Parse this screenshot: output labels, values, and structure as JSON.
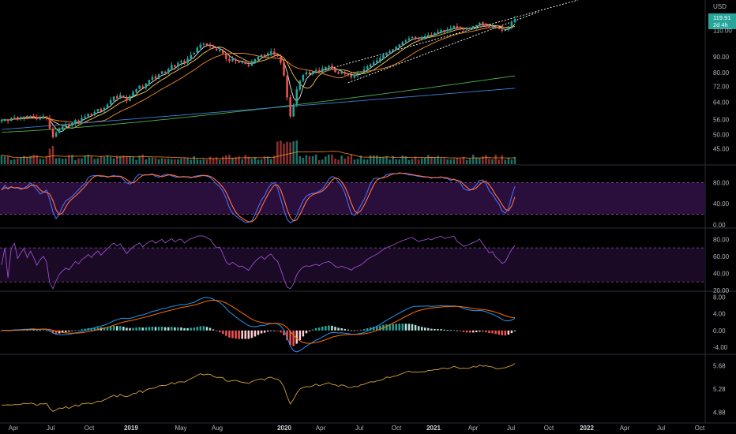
{
  "chart_data": [
    {
      "type": "candlestick",
      "pane": "price",
      "currency": "USD",
      "last_price": "119.91",
      "countdown": "2d 4h",
      "y_scale": "log",
      "y_ticks": [
        "110.00",
        "90.00",
        "80.00",
        "72.00",
        "64.00",
        "56.00",
        "50.00",
        "45.00"
      ],
      "ylim": [
        42,
        135
      ],
      "ohlc_close": [
        55.8,
        56.2,
        55.5,
        56.6,
        57.1,
        56.4,
        56.9,
        57.4,
        56.8,
        57.6,
        57.1,
        56.3,
        57.0,
        57.5,
        56.9,
        52.4,
        49.1,
        50.8,
        52.3,
        53.2,
        54.0,
        53.4,
        54.6,
        55.9,
        55.2,
        56.7,
        57.4,
        58.6,
        57.8,
        59.4,
        60.7,
        59.6,
        61.2,
        62.8,
        64.9,
        66.7,
        65.9,
        67.5,
        66.1,
        64.7,
        66.9,
        69.1,
        70.5,
        72.4,
        71.2,
        73.6,
        75.7,
        77.3,
        76.4,
        78.8,
        80.7,
        79.6,
        82.1,
        84.6,
        83.5,
        86.0,
        87.1,
        85.8,
        88.8,
        91.3,
        92.6,
        96.4,
        98.7,
        99.4,
        98.1,
        97.6,
        96.0,
        94.6,
        95.1,
        92.4,
        88.7,
        87.1,
        88.6,
        87.3,
        86.1,
        86.5,
        85.2,
        84.1,
        86.3,
        88.4,
        90.2,
        91.6,
        90.3,
        92.5,
        93.8,
        91.8,
        90.5,
        86.1,
        78.2,
        66.3,
        57.5,
        62.5,
        70.4,
        75.1,
        78.6,
        80.1,
        79.2,
        80.6,
        81.4,
        80.2,
        82.5,
        83.3,
        84.1,
        82.7,
        80.2,
        79.3,
        80.3,
        79.1,
        78.5,
        77.2,
        78.8,
        79.6,
        80.4,
        81.9,
        83.8,
        85.1,
        86.4,
        87.6,
        89.2,
        91.4,
        92.8,
        94.1,
        95.4,
        97.2,
        98.8,
        100.5,
        101.8,
        103.6,
        104.4,
        103.8,
        103.2,
        104.5,
        105.1,
        106.3,
        106.0,
        107.8,
        108.9,
        110.2,
        109.6,
        110.8,
        111.4,
        113.6,
        112.0,
        111.5,
        110.7,
        111.3,
        112.3,
        113.5,
        114.5,
        116.4,
        115.2,
        114.1,
        112.7,
        113.5,
        111.8,
        111.0,
        109.6,
        110.3,
        113.2,
        116.8,
        119.91
      ],
      "indicators": [
        "SMA 10",
        "SMA 20",
        "SMA 50",
        "SMA 100",
        "SMA 200"
      ],
      "volume_pane": true
    },
    {
      "type": "line",
      "pane": "stochastic",
      "series": [
        {
          "values": []
        },
        {
          "values": []
        }
      ],
      "y_ticks": [
        "80.00",
        "40.00",
        "0.00"
      ],
      "ylim": [
        0,
        100
      ],
      "bands": [
        20,
        80
      ]
    },
    {
      "type": "line",
      "pane": "rsi",
      "series": [
        {
          "values": []
        }
      ],
      "y_ticks": [
        "80.00",
        "60.00",
        "40.00",
        "20.00"
      ],
      "ylim": [
        20,
        85
      ],
      "bands": [
        30,
        70
      ]
    },
    {
      "type": "bar",
      "pane": "macd",
      "series": [
        {
          "values": []
        },
        {
          "values": []
        }
      ],
      "y_ticks": [
        "8.00",
        "4.00",
        "0.00",
        "-4.00"
      ],
      "ylim": [
        -5.5,
        9
      ]
    },
    {
      "type": "line",
      "pane": "ratio",
      "series": [
        {
          "values": []
        }
      ],
      "y_ticks": [
        "5.68",
        "5.28",
        "4.88"
      ],
      "ylim": [
        4.75,
        5.85
      ]
    }
  ],
  "x_axis": {
    "labels": [
      "Apr",
      "Jul",
      "Oct",
      "2019",
      "May",
      "Aug",
      "2020",
      "Apr",
      "Jul",
      "Oct",
      "2021",
      "Apr",
      "Jul",
      "Oct",
      "2022",
      "Apr",
      "Jul",
      "Oct"
    ],
    "bold": [
      "2019",
      "2020",
      "2021",
      "2022"
    ]
  },
  "colors": {
    "up": "#26a69a",
    "down": "#ef5350",
    "sma10": "#e6e6e6",
    "sma20": "#f7c94c",
    "sma50": "#f08c2a",
    "sma100": "#4caf50",
    "sma200": "#3f7fd8",
    "stoch_k": "#4a6cf0",
    "stoch_d": "#ff7043",
    "rsi": "#9c4dcc",
    "band_fill": "#2a0f3c",
    "macd": "#2196f3",
    "signal": "#ff6d00",
    "ratio": "#d4a239",
    "channel": "#ffffff"
  }
}
